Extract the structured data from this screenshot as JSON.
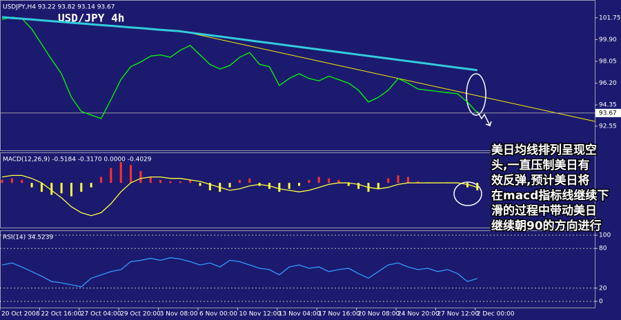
{
  "annotation": [
    "美日均线排列呈现空",
    "头,一直压制美日有",
    "效反弹,预计美日将",
    "在macd指标线继续下",
    "滑的过程中带动美日",
    "继续朝90的方向进行"
  ],
  "chart_data": [
    {
      "type": "line",
      "subtitle": "USDJPY,H4  93.22 93.82 93.14 93.67",
      "title": "USD/JPY 4h",
      "ylim": [
        90.5,
        103.2
      ],
      "yticks": [
        92.55,
        94.35,
        {
          "value": 96.2,
          "label": "96.20"
        },
        98.05,
        {
          "value": 99.9,
          "label": "99.90"
        },
        101.75
      ],
      "last_value": 93.67,
      "series": [
        {
          "color": "#00ff00",
          "values": [
            101.6,
            101.8,
            101.7,
            100.8,
            99.5,
            98.2,
            97.0,
            95.0,
            93.8,
            93.5,
            93.2,
            94.8,
            96.5,
            97.6,
            98.0,
            98.5,
            98.6,
            98.4,
            99.0,
            99.4,
            98.6,
            97.8,
            97.4,
            97.7,
            98.4,
            98.8,
            97.8,
            97.6,
            96.0,
            96.6,
            97.0,
            96.6,
            96.4,
            96.8,
            96.5,
            96.2,
            95.6,
            94.6,
            95.0,
            95.6,
            96.6,
            96.2,
            95.7,
            95.6,
            95.5,
            95.4,
            95.3,
            94.6,
            93.67
          ]
        },
        {
          "color": "#33ccdd",
          "values": [
            101.8,
            101.73,
            101.67,
            101.6,
            101.53,
            101.47,
            101.4,
            101.33,
            101.27,
            101.2,
            101.13,
            101.07,
            101.0,
            100.93,
            100.87,
            100.8,
            100.73,
            100.67,
            100.6,
            100.49,
            100.38,
            100.27,
            100.16,
            100.05,
            99.94,
            99.83,
            99.72,
            99.61,
            99.5,
            99.39,
            99.28,
            99.17,
            99.06,
            98.95,
            98.84,
            98.73,
            98.62,
            98.51,
            98.4,
            98.29,
            98.18,
            98.07,
            97.96,
            97.85,
            97.74,
            97.63,
            97.52,
            97.41,
            97.3
          ]
        }
      ]
    },
    {
      "type": "bar",
      "subtitle": "MACD(12,26,9) -0.5184 -0.3170 0.0000 -0.4029",
      "ylim": [
        -3,
        2
      ],
      "color_up": "#ff3030",
      "color_down": "#ffff40",
      "values": [
        0.2,
        0.3,
        0.2,
        -0.3,
        -0.6,
        -0.8,
        -0.7,
        -0.9,
        -0.6,
        -0.3,
        0.4,
        1.0,
        1.4,
        1.2,
        0.8,
        0.4,
        0.2,
        0.1,
        0.1,
        0.2,
        -0.2,
        -0.5,
        -0.6,
        -0.3,
        0.2,
        0.3,
        -0.2,
        -0.4,
        -0.6,
        -0.4,
        -0.2,
        0.2,
        0.4,
        0.3,
        0.2,
        -0.2,
        -0.4,
        -0.6,
        -0.4,
        0.3,
        0.5,
        0.4,
        0.1,
        0.05,
        0.0,
        0.05,
        0.0,
        -0.3,
        -0.5
      ],
      "series": [
        {
          "color": "#ffff40",
          "values": [
            0.4,
            0.5,
            0.5,
            0.3,
            0.0,
            -0.5,
            -1.0,
            -1.6,
            -2.0,
            -2.2,
            -2.0,
            -1.4,
            -0.6,
            0.0,
            0.3,
            0.4,
            0.4,
            0.3,
            0.3,
            0.2,
            0.1,
            -0.1,
            -0.3,
            -0.5,
            -0.4,
            -0.2,
            -0.1,
            -0.2,
            -0.4,
            -0.5,
            -0.6,
            -0.5,
            -0.3,
            -0.1,
            0.0,
            0.0,
            -0.1,
            -0.3,
            -0.4,
            -0.3,
            -0.1,
            0.0,
            0.0,
            0.0,
            0.0,
            0.0,
            0.0,
            -0.1,
            -0.3
          ]
        }
      ]
    },
    {
      "type": "line",
      "subtitle": "RSI(14) 34.5239",
      "ylim": [
        -9.4,
        106.3
      ],
      "yticks": [
        0,
        20,
        80,
        100
      ],
      "grid": true,
      "categories": [
        "20 Oct 2008",
        null,
        null,
        null,
        "22 Oct 16:00",
        null,
        null,
        null,
        "27 Oct 04:00",
        null,
        null,
        null,
        "29 Oct 20:00",
        null,
        null,
        null,
        "3 Nov 08:00",
        null,
        null,
        null,
        "6 Nov 00:00",
        null,
        null,
        null,
        "10 Nov 12:00",
        null,
        null,
        null,
        "13 Nov 04:00",
        null,
        null,
        null,
        "17 Nov 16:00",
        null,
        null,
        null,
        "20 Nov 08:00",
        null,
        null,
        null,
        "24 Nov 20:00",
        null,
        null,
        null,
        "27 Nov 12:00",
        null,
        null,
        null,
        "2 Dec 00:00"
      ],
      "series": [
        {
          "color": "#3399ff",
          "values": [
            55,
            58,
            52,
            45,
            38,
            30,
            28,
            25,
            22,
            35,
            40,
            45,
            48,
            60,
            62,
            65,
            62,
            66,
            64,
            60,
            55,
            58,
            52,
            62,
            60,
            55,
            50,
            48,
            40,
            52,
            55,
            50,
            52,
            45,
            48,
            50,
            42,
            35,
            45,
            55,
            58,
            52,
            48,
            50,
            45,
            48,
            42,
            30,
            34.5
          ]
        }
      ]
    }
  ]
}
